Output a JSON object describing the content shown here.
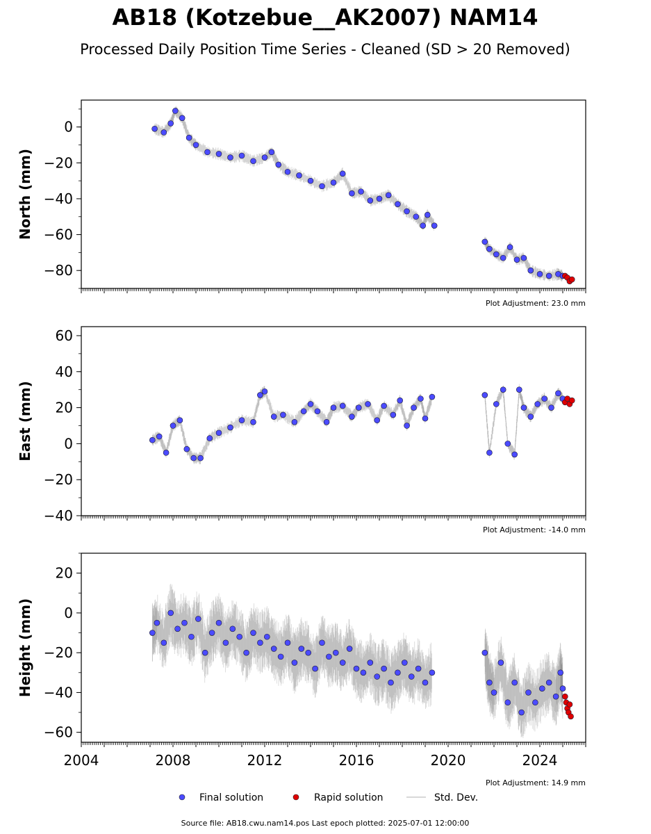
{
  "title": "AB18 (Kotzebue__AK2007) NAM14",
  "subtitle": "Processed Daily Position Time Series - Cleaned (SD > 20 Removed)",
  "footer": "Source file: AB18.cwu.nam14.pos  Last epoch plotted: 2025-07-01 12:00:00",
  "legend": {
    "final": "Final solution",
    "rapid": "Rapid solution",
    "std": "Std. Dev."
  },
  "colors": {
    "final": "#4b4bff",
    "rapid": "#e00000",
    "std": "#aaaaaa"
  },
  "chart_data": [
    {
      "type": "scatter",
      "ylabel": "North (mm)",
      "adjustment": "Plot Adjustment: 23.0 mm",
      "xlim": [
        2004,
        2026
      ],
      "ylim": [
        -90,
        15
      ],
      "yticks": [
        0,
        -20,
        -40,
        -60,
        -80
      ],
      "ytick_labels": [
        "0",
        "−20",
        "−40",
        "−60",
        "−80"
      ],
      "series": [
        {
          "name": "Final solution",
          "x": [
            2007.2,
            2007.6,
            2007.9,
            2008.1,
            2008.4,
            2008.7,
            2009.0,
            2009.5,
            2010.0,
            2010.5,
            2011.0,
            2011.5,
            2012.0,
            2012.3,
            2012.6,
            2013.0,
            2013.5,
            2014.0,
            2014.5,
            2015.0,
            2015.4,
            2015.8,
            2016.2,
            2016.6,
            2017.0,
            2017.4,
            2017.8,
            2018.2,
            2018.6,
            2018.9,
            2019.1,
            2019.4,
            2021.6,
            2021.8,
            2022.1,
            2022.4,
            2022.7,
            2023.0,
            2023.3,
            2023.6,
            2024.0,
            2024.4,
            2024.8,
            2025.0
          ],
          "y": [
            -1,
            -3,
            2,
            9,
            5,
            -6,
            -10,
            -14,
            -15,
            -17,
            -16,
            -19,
            -17,
            -14,
            -21,
            -25,
            -27,
            -30,
            -33,
            -31,
            -26,
            -37,
            -36,
            -41,
            -40,
            -38,
            -43,
            -47,
            -50,
            -55,
            -49,
            -55,
            -64,
            -68,
            -71,
            -73,
            -67,
            -74,
            -73,
            -80,
            -82,
            -83,
            -82,
            -83
          ]
        },
        {
          "name": "Rapid solution",
          "x": [
            2025.1,
            2025.2,
            2025.3,
            2025.4
          ],
          "y": [
            -83,
            -84,
            -86,
            -85
          ]
        }
      ]
    },
    {
      "type": "scatter",
      "ylabel": "East (mm)",
      "adjustment": "Plot Adjustment: -14.0 mm",
      "xlim": [
        2004,
        2026
      ],
      "ylim": [
        -40,
        65
      ],
      "yticks": [
        60,
        40,
        20,
        0,
        -20,
        -40
      ],
      "ytick_labels": [
        "60",
        "40",
        "20",
        "0",
        "−20",
        "−40"
      ],
      "series": [
        {
          "name": "Final solution",
          "x": [
            2007.1,
            2007.4,
            2007.7,
            2008.0,
            2008.3,
            2008.6,
            2008.9,
            2009.2,
            2009.6,
            2010.0,
            2010.5,
            2011.0,
            2011.5,
            2011.8,
            2012.0,
            2012.4,
            2012.8,
            2013.3,
            2013.7,
            2014.0,
            2014.3,
            2014.7,
            2015.0,
            2015.4,
            2015.8,
            2016.1,
            2016.5,
            2016.9,
            2017.2,
            2017.6,
            2017.9,
            2018.2,
            2018.5,
            2018.8,
            2019.0,
            2019.3,
            2021.6,
            2021.8,
            2022.1,
            2022.4,
            2022.6,
            2022.9,
            2023.1,
            2023.3,
            2023.6,
            2023.9,
            2024.2,
            2024.5,
            2024.8,
            2025.0
          ],
          "y": [
            2,
            4,
            -5,
            10,
            13,
            -3,
            -8,
            -8,
            3,
            6,
            9,
            13,
            12,
            27,
            29,
            15,
            16,
            12,
            18,
            22,
            18,
            12,
            20,
            21,
            15,
            20,
            22,
            13,
            21,
            16,
            24,
            10,
            20,
            25,
            14,
            26,
            27,
            -5,
            22,
            30,
            0,
            -6,
            30,
            20,
            15,
            22,
            25,
            20,
            28,
            25
          ]
        },
        {
          "name": "Rapid solution",
          "x": [
            2025.1,
            2025.2,
            2025.3,
            2025.4
          ],
          "y": [
            23,
            25,
            22,
            24
          ]
        }
      ]
    },
    {
      "type": "scatter",
      "ylabel": "Height (mm)",
      "adjustment": "Plot Adjustment: 14.9 mm",
      "xlim": [
        2004,
        2026
      ],
      "ylim": [
        -65,
        30
      ],
      "xticks": [
        2004,
        2008,
        2012,
        2016,
        2020,
        2024
      ],
      "yticks": [
        20,
        0,
        -20,
        -40,
        -60
      ],
      "ytick_labels": [
        "20",
        "0",
        "−20",
        "−40",
        "−60"
      ],
      "series": [
        {
          "name": "Final solution",
          "x": [
            2007.1,
            2007.3,
            2007.6,
            2007.9,
            2008.2,
            2008.5,
            2008.8,
            2009.1,
            2009.4,
            2009.7,
            2010.0,
            2010.3,
            2010.6,
            2010.9,
            2011.2,
            2011.5,
            2011.8,
            2012.1,
            2012.4,
            2012.7,
            2013.0,
            2013.3,
            2013.6,
            2013.9,
            2014.2,
            2014.5,
            2014.8,
            2015.1,
            2015.4,
            2015.7,
            2016.0,
            2016.3,
            2016.6,
            2016.9,
            2017.2,
            2017.5,
            2017.8,
            2018.1,
            2018.4,
            2018.7,
            2019.0,
            2019.3,
            2021.6,
            2021.8,
            2022.0,
            2022.3,
            2022.6,
            2022.9,
            2023.2,
            2023.5,
            2023.8,
            2024.1,
            2024.4,
            2024.7,
            2024.9,
            2025.0
          ],
          "y": [
            -10,
            -5,
            -15,
            0,
            -8,
            -5,
            -12,
            -3,
            -20,
            -10,
            -5,
            -15,
            -8,
            -12,
            -20,
            -10,
            -15,
            -12,
            -18,
            -22,
            -15,
            -25,
            -18,
            -20,
            -28,
            -15,
            -22,
            -20,
            -25,
            -18,
            -28,
            -30,
            -25,
            -32,
            -28,
            -35,
            -30,
            -25,
            -32,
            -28,
            -35,
            -30,
            -20,
            -35,
            -40,
            -25,
            -45,
            -35,
            -50,
            -40,
            -45,
            -38,
            -35,
            -42,
            -30,
            -38
          ]
        },
        {
          "name": "Rapid solution",
          "x": [
            2025.1,
            2025.15,
            2025.2,
            2025.25,
            2025.3,
            2025.35
          ],
          "y": [
            -42,
            -45,
            -48,
            -50,
            -46,
            -52
          ]
        }
      ]
    }
  ]
}
